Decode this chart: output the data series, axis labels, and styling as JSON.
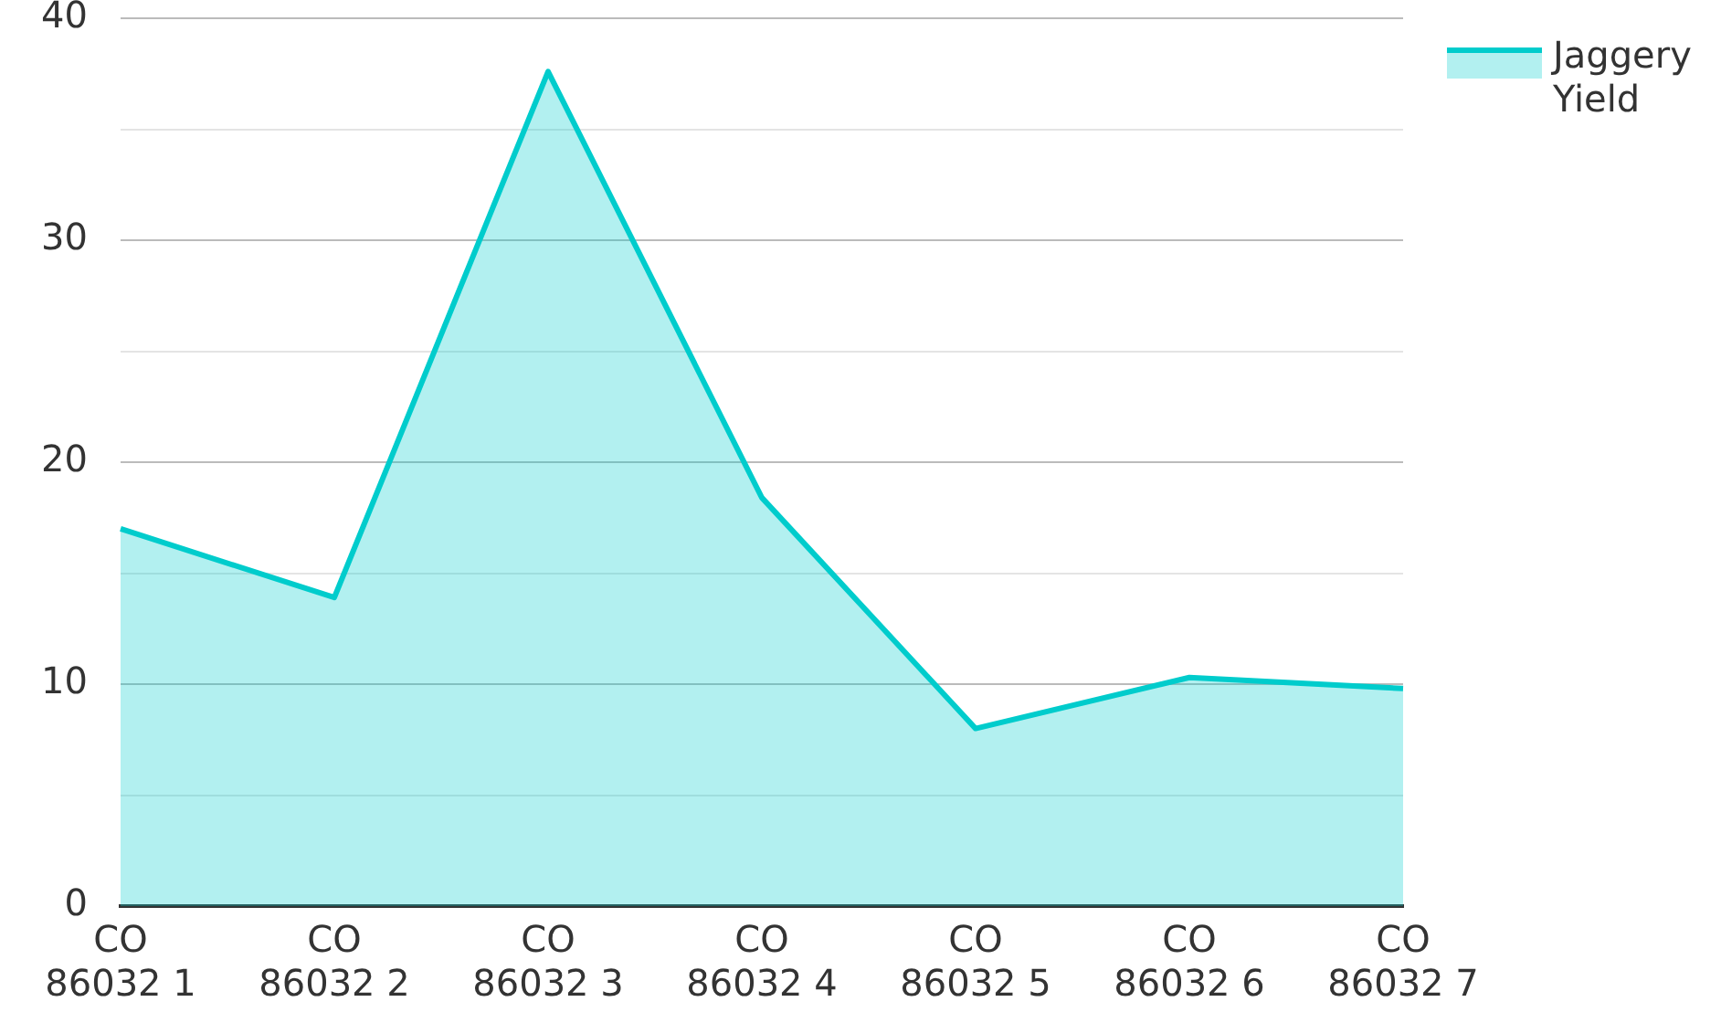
{
  "chart_data": {
    "type": "area",
    "categories": [
      "CO 86032 1",
      "CO 86032 2",
      "CO 86032 3",
      "CO 86032 4",
      "CO 86032 5",
      "CO 86032 6",
      "CO 86032 7"
    ],
    "series": [
      {
        "name": "Jaggery Yield",
        "color": "#00cccc",
        "values": [
          17.0,
          13.9,
          37.6,
          18.4,
          8.0,
          10.3,
          9.8
        ]
      }
    ],
    "ylim": [
      0,
      40
    ],
    "yticks": [
      0,
      {
        "value": 5,
        "label": null
      },
      10,
      {
        "value": 15,
        "label": null
      },
      20,
      {
        "value": 25,
        "label": null
      },
      30,
      {
        "value": 35,
        "label": null
      },
      40
    ],
    "grid": "y",
    "legend": "top right",
    "marker": "none",
    "line_style": "solid"
  }
}
